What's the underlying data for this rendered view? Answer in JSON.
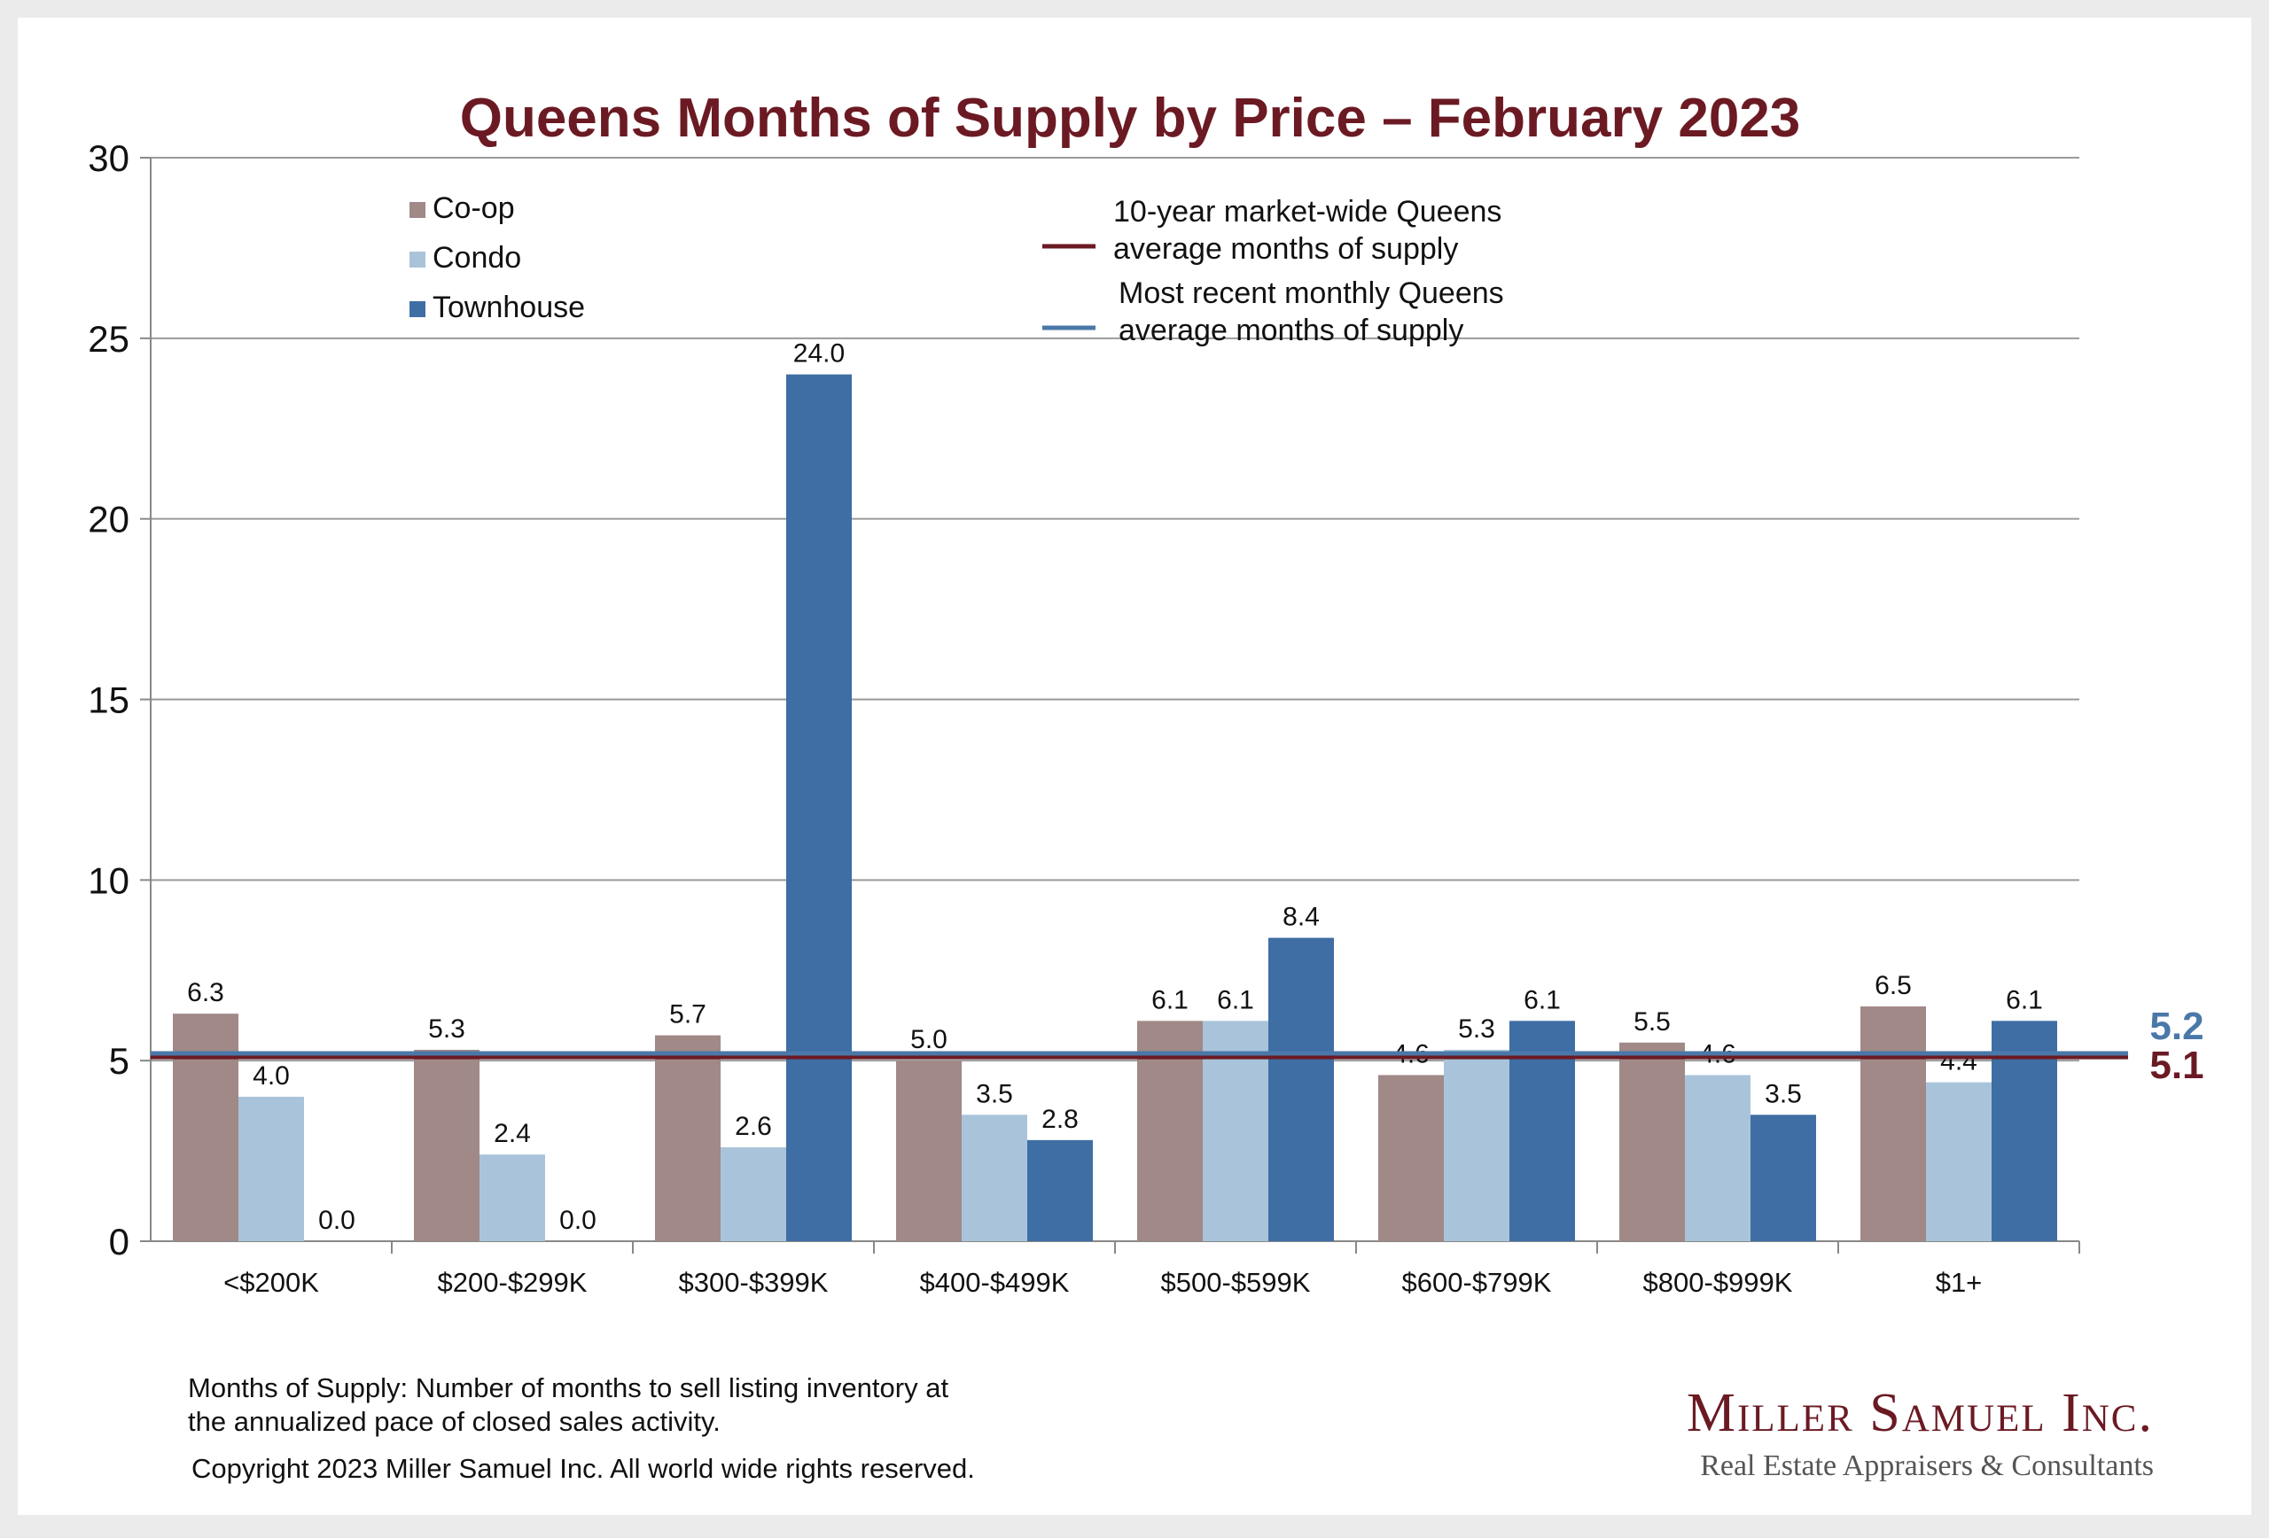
{
  "chart_data": {
    "type": "bar",
    "title": "Queens Months of Supply by Price – February 2023",
    "categories": [
      "<$200K",
      "$200-$299K",
      "$300-$399K",
      "$400-$499K",
      "$500-$599K",
      "$600-$799K",
      "$800-$999K",
      "$1+"
    ],
    "series": [
      {
        "name": "Co-op",
        "color": "#a08987",
        "values": [
          6.3,
          5.3,
          5.7,
          5.0,
          6.1,
          4.6,
          5.5,
          6.5
        ],
        "labels": [
          "6.3",
          "5.3",
          "5.7",
          "5.0",
          "6.1",
          "4.6",
          "5.5",
          "6.5"
        ]
      },
      {
        "name": "Condo",
        "color": "#a9c4da",
        "values": [
          4.0,
          2.4,
          2.6,
          3.5,
          6.1,
          5.3,
          4.6,
          4.4
        ],
        "labels": [
          "4.0",
          "2.4",
          "2.6",
          "3.5",
          "6.1",
          "5.3",
          "4.6",
          "4.4"
        ]
      },
      {
        "name": "Townhouse",
        "color": "#3e6ea3",
        "values": [
          0.0,
          0.0,
          24.0,
          2.8,
          8.4,
          6.1,
          3.5,
          6.1
        ],
        "labels": [
          "0.0",
          "0.0",
          "24.0",
          "2.8",
          "8.4",
          "6.1",
          "3.5",
          "6.1"
        ]
      }
    ],
    "reference_lines": [
      {
        "name_line1": "10-year market-wide Queens",
        "name_line2": "average months of supply",
        "value": 5.1,
        "label": "5.1",
        "color": "#6b1a23"
      },
      {
        "name_line1": "Most recent monthly Queens",
        "name_line2": "average months of supply",
        "value": 5.2,
        "label": "5.2",
        "color": "#4a78a8"
      }
    ],
    "yticks": [
      "0",
      "5",
      "10",
      "15",
      "20",
      "25",
      "30"
    ],
    "ylim": [
      0,
      30
    ],
    "grid": true,
    "legend_position": "top-left"
  },
  "footnote": {
    "line1": "Months of Supply: Number of months to sell listing inventory at",
    "line2": "the annualized pace of closed sales activity.",
    "copyright": "Copyright 2023 Miller Samuel Inc.  All world wide rights reserved."
  },
  "logo": {
    "name": "Miller Samuel Inc.",
    "tagline": "Real Estate Appraisers & Consultants"
  }
}
